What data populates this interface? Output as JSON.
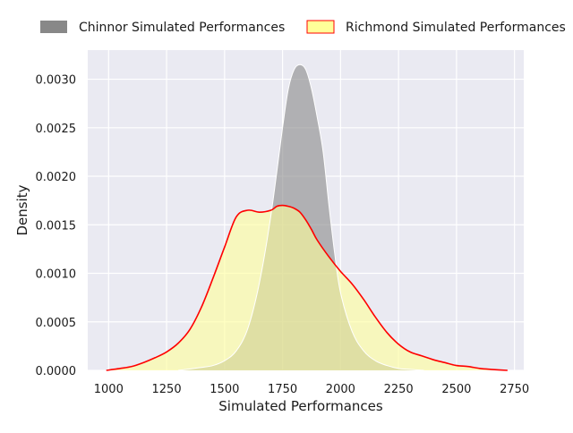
{
  "chart_data": {
    "type": "area",
    "title": "",
    "xlabel": "Simulated Performances",
    "ylabel": "Density",
    "xlim": [
      910,
      2790
    ],
    "ylim": [
      0,
      0.0033
    ],
    "x_ticks": [
      1000,
      1250,
      1500,
      1750,
      2000,
      2250,
      2500,
      2750
    ],
    "y_ticks": [
      0.0,
      0.0005,
      0.001,
      0.0015,
      0.002,
      0.0025,
      0.003
    ],
    "y_tick_labels": [
      "0.0000",
      "0.0005",
      "0.0010",
      "0.0015",
      "0.0020",
      "0.0025",
      "0.0030"
    ],
    "grid": true,
    "legend_position": "top",
    "series": [
      {
        "name": "Chinnor Simulated Performances",
        "fill": "#888888",
        "fill_opacity": 0.6,
        "line_color": "#ffffff",
        "x": [
          1300,
          1400,
          1450,
          1500,
          1550,
          1600,
          1650,
          1700,
          1750,
          1775,
          1800,
          1825,
          1850,
          1875,
          1900,
          1925,
          1950,
          1975,
          2000,
          2050,
          2100,
          2150,
          2200,
          2250,
          2300,
          2360
        ],
        "y": [
          0.0,
          3e-05,
          5e-05,
          0.0001,
          0.0002,
          0.00043,
          0.0009,
          0.0016,
          0.0025,
          0.0029,
          0.0031,
          0.00315,
          0.0031,
          0.0029,
          0.0026,
          0.00225,
          0.0017,
          0.0012,
          0.0008,
          0.0004,
          0.0002,
          0.0001,
          5e-05,
          2e-05,
          1e-05,
          0.0
        ]
      },
      {
        "name": "Richmond Simulated Performances",
        "fill": "#ffff99",
        "fill_opacity": 0.6,
        "line_color": "#ff0000",
        "x": [
          990,
          1050,
          1100,
          1150,
          1200,
          1250,
          1300,
          1350,
          1400,
          1450,
          1500,
          1550,
          1600,
          1650,
          1700,
          1725,
          1750,
          1775,
          1800,
          1825,
          1850,
          1875,
          1900,
          1950,
          2000,
          2050,
          2100,
          2150,
          2200,
          2250,
          2300,
          2350,
          2400,
          2450,
          2500,
          2550,
          2600,
          2650,
          2720
        ],
        "y": [
          0.0,
          2e-05,
          4e-05,
          8e-05,
          0.00013,
          0.00019,
          0.00028,
          0.00042,
          0.00065,
          0.00095,
          0.00127,
          0.00158,
          0.00165,
          0.00163,
          0.00165,
          0.00169,
          0.0017,
          0.00169,
          0.00167,
          0.00163,
          0.00155,
          0.00145,
          0.00134,
          0.00117,
          0.00102,
          0.00089,
          0.00073,
          0.00055,
          0.00039,
          0.00027,
          0.00019,
          0.00015,
          0.00011,
          8e-05,
          5e-05,
          4e-05,
          2e-05,
          1e-05,
          0.0
        ]
      }
    ]
  }
}
